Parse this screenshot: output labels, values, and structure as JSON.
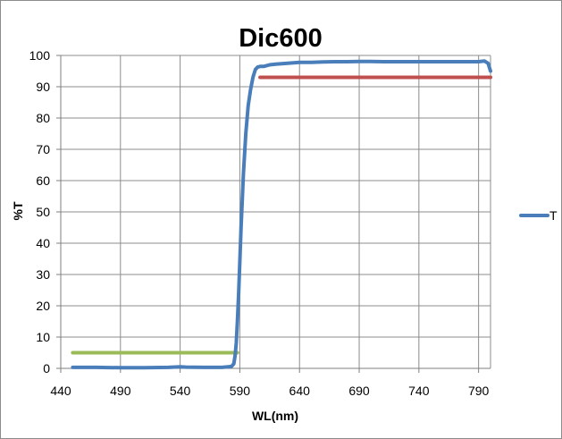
{
  "chart_data": {
    "type": "line",
    "title": "Dic600",
    "xlabel": "WL(nm)",
    "ylabel": "%T",
    "xlim": [
      440,
      800
    ],
    "ylim": [
      0,
      100
    ],
    "x_ticks": [
      440,
      490,
      540,
      590,
      640,
      690,
      740,
      790
    ],
    "y_ticks": [
      0,
      10,
      20,
      30,
      40,
      50,
      60,
      70,
      80,
      90,
      100
    ],
    "grid": true,
    "legend_position": "right",
    "series": [
      {
        "name": "T",
        "color": "#4a7ebb",
        "x": [
          450,
          470,
          490,
          510,
          530,
          540,
          545,
          560,
          575,
          583,
          585,
          586,
          587,
          588,
          589,
          590,
          591,
          593,
          595,
          597,
          599,
          601,
          603,
          605,
          607,
          610,
          615,
          620,
          630,
          640,
          650,
          660,
          670,
          680,
          690,
          700,
          710,
          720,
          730,
          740,
          750,
          760,
          770,
          780,
          790,
          795,
          798,
          800
        ],
        "y": [
          0.3,
          0.3,
          0.2,
          0.2,
          0.3,
          0.5,
          0.4,
          0.3,
          0.3,
          0.6,
          1.5,
          4,
          8,
          15,
          24,
          34,
          45,
          62,
          75,
          84,
          89,
          93,
          95.5,
          96.3,
          96.5,
          96.5,
          97,
          97.2,
          97.5,
          97.8,
          97.8,
          97.9,
          98,
          98,
          98.1,
          98.1,
          98,
          98,
          98,
          98,
          98,
          98,
          98,
          98,
          98,
          98.2,
          97.5,
          95
        ]
      },
      {
        "color": "#9bbb59",
        "x": [
          450,
          588
        ],
        "y": [
          5,
          5
        ]
      },
      {
        "color": "#c0504d",
        "x": [
          607,
          800
        ],
        "y": [
          93,
          93
        ]
      }
    ]
  }
}
